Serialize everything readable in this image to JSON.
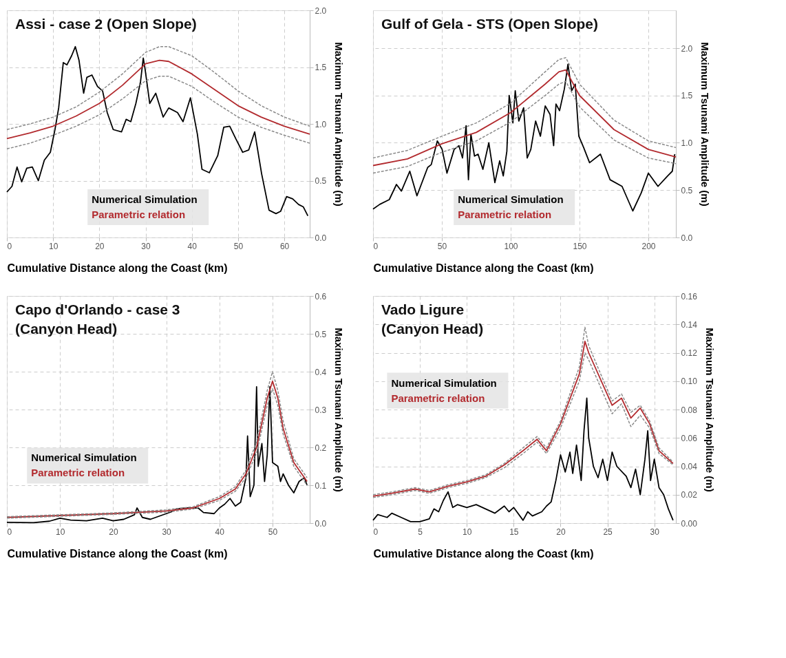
{
  "chart_data": [
    {
      "type": "line",
      "title": "Assi - case 2 (Open Slope)",
      "xlabel": "Cumulative Distance along the Coast (km)",
      "ylabel": "Maximum Tsunami Amplitude (m)",
      "xlim": [
        0,
        65.5
      ],
      "xticks": [
        0,
        10,
        20,
        30,
        40,
        50,
        60
      ],
      "ylim": [
        0,
        2
      ],
      "yticks": [
        {
          "value": 0,
          "label": "0.0"
        },
        0.5,
        {
          "value": 1,
          "label": "1.0"
        },
        1.5,
        {
          "value": 2,
          "label": "2.0"
        }
      ],
      "grid": true,
      "legend": "bottom",
      "line_style": "solid",
      "marker": "none",
      "series": [
        {
          "name": "Numerical Simulation",
          "color": "#000000",
          "x": [
            0,
            1.1,
            2.2,
            3.2,
            4.3,
            5.5,
            6.8,
            8.1,
            9.4,
            10.4,
            11.2,
            12.2,
            13,
            14,
            14.8,
            15.6,
            16.6,
            17.3,
            18.4,
            19.6,
            20.7,
            21.7,
            23,
            24.8,
            25.8,
            26.8,
            27.9,
            28.9,
            29.5,
            29.9,
            30.9,
            32.2,
            33.8,
            35,
            36.9,
            38.1,
            39.7,
            41.2,
            42.2,
            43.8,
            45.6,
            46.9,
            48.2,
            49.5,
            51,
            52.3,
            53.6,
            55.1,
            56.7,
            58.2,
            59.2,
            60.5,
            61.8,
            63.1,
            64.1,
            65.1
          ],
          "values": [
            0.4,
            0.45,
            0.62,
            0.49,
            0.61,
            0.62,
            0.5,
            0.68,
            0.75,
            0.95,
            1.14,
            1.54,
            1.52,
            1.6,
            1.68,
            1.56,
            1.27,
            1.41,
            1.43,
            1.33,
            1.29,
            1.1,
            0.95,
            0.93,
            1.04,
            1.02,
            1.18,
            1.37,
            1.58,
            1.48,
            1.18,
            1.27,
            1.06,
            1.14,
            1.1,
            1.02,
            1.23,
            0.91,
            0.6,
            0.57,
            0.72,
            0.97,
            0.98,
            0.87,
            0.75,
            0.77,
            0.93,
            0.56,
            0.24,
            0.21,
            0.23,
            0.36,
            0.34,
            0.29,
            0.27,
            0.19
          ]
        },
        {
          "name": "Parametric relation",
          "color": "#b22a2e",
          "x": [
            0,
            5,
            10,
            15,
            20,
            25,
            30,
            33,
            35,
            40,
            45,
            50,
            55,
            60,
            65.5
          ],
          "values": [
            0.87,
            0.92,
            0.98,
            1.07,
            1.18,
            1.34,
            1.53,
            1.56,
            1.55,
            1.44,
            1.3,
            1.16,
            1.06,
            0.98,
            0.91
          ]
        },
        {
          "color": "#8a8a8a",
          "line_style": "dashed",
          "x": [
            0,
            5,
            10,
            15,
            20,
            25,
            30,
            33,
            35,
            40,
            45,
            50,
            55,
            60,
            65.5
          ],
          "values": [
            0.95,
            1.0,
            1.06,
            1.15,
            1.28,
            1.44,
            1.63,
            1.68,
            1.68,
            1.6,
            1.45,
            1.29,
            1.16,
            1.06,
            0.98
          ]
        },
        {
          "color": "#8a8a8a",
          "line_style": "dashed",
          "x": [
            0,
            5,
            10,
            15,
            20,
            25,
            30,
            33,
            35,
            40,
            45,
            50,
            55,
            60,
            65.5
          ],
          "values": [
            0.78,
            0.83,
            0.9,
            0.98,
            1.08,
            1.22,
            1.38,
            1.42,
            1.42,
            1.33,
            1.19,
            1.06,
            0.97,
            0.9,
            0.83
          ]
        }
      ]
    },
    {
      "type": "line",
      "title": "Gulf of Gela - STS (Open Slope)",
      "xlabel": "Cumulative Distance along the Coast (km)",
      "ylabel": "Maximum Tsunami Amplitude (m)",
      "xlim": [
        0,
        220
      ],
      "xticks": [
        0,
        50,
        100,
        150,
        200
      ],
      "ylim": [
        0,
        2.4
      ],
      "yticks": [
        {
          "value": 0,
          "label": "0.0"
        },
        0.5,
        {
          "value": 1,
          "label": "1.0"
        },
        1.5,
        {
          "value": 2,
          "label": "2.0"
        }
      ],
      "grid": true,
      "legend": "bottom",
      "line_style": "solid",
      "marker": "none",
      "series": [
        {
          "name": "Numerical Simulation",
          "color": "#000000",
          "x": [
            0,
            4.9,
            11.8,
            17,
            20.6,
            26.7,
            31.9,
            39.7,
            42.3,
            46.7,
            50.2,
            53.7,
            58.9,
            62.4,
            65,
            67.6,
            69.3,
            71.1,
            73.7,
            76.3,
            79.8,
            84.1,
            88.5,
            92,
            94.6,
            97.2,
            98.9,
            101.6,
            103.3,
            105.9,
            109.4,
            112,
            114.6,
            118.1,
            121.6,
            125.1,
            128.6,
            131.2,
            132.9,
            135.5,
            139,
            141.6,
            144.3,
            146.9,
            149.5,
            153,
            157.3,
            165.2,
            172.2,
            180.9,
            188.7,
            194.8,
            200,
            207,
            214,
            217.4,
            219.2
          ],
          "values": [
            0.3,
            0.35,
            0.4,
            0.56,
            0.49,
            0.7,
            0.44,
            0.74,
            0.77,
            1.02,
            0.93,
            0.68,
            0.93,
            0.97,
            0.84,
            1.18,
            0.61,
            1.09,
            0.86,
            0.88,
            0.72,
            1.0,
            0.58,
            0.81,
            0.65,
            0.91,
            1.5,
            1.21,
            1.55,
            1.23,
            1.37,
            0.84,
            0.93,
            1.23,
            1.07,
            1.39,
            1.3,
            0.97,
            1.41,
            1.34,
            1.57,
            1.83,
            1.55,
            1.62,
            1.07,
            0.95,
            0.79,
            0.88,
            0.61,
            0.54,
            0.28,
            0.47,
            0.68,
            0.54,
            0.65,
            0.7,
            0.88
          ]
        },
        {
          "name": "Parametric relation",
          "color": "#b22a2e",
          "x": [
            0,
            25,
            50,
            75,
            100,
            125,
            135,
            140,
            150,
            175,
            200,
            220
          ],
          "values": [
            0.76,
            0.83,
            0.99,
            1.11,
            1.32,
            1.62,
            1.75,
            1.77,
            1.5,
            1.14,
            0.93,
            0.85
          ]
        },
        {
          "color": "#8a8a8a",
          "line_style": "dashed",
          "x": [
            0,
            25,
            50,
            75,
            100,
            125,
            135,
            140,
            150,
            175,
            200,
            220
          ],
          "values": [
            0.84,
            0.92,
            1.07,
            1.21,
            1.42,
            1.75,
            1.88,
            1.9,
            1.62,
            1.24,
            1.02,
            0.95
          ]
        },
        {
          "color": "#8a8a8a",
          "line_style": "dashed",
          "x": [
            0,
            25,
            50,
            75,
            100,
            125,
            135,
            140,
            150,
            175,
            200,
            220
          ],
          "values": [
            0.68,
            0.75,
            0.9,
            1.02,
            1.22,
            1.5,
            1.62,
            1.65,
            1.38,
            1.03,
            0.84,
            0.78
          ]
        }
      ]
    },
    {
      "type": "line",
      "title": "Capo d'Orlando - case 3\n(Canyon Head)",
      "xlabel": "Cumulative Distance along the Coast (km)",
      "ylabel": "Maximum Tsunami Amplitude (m)",
      "xlim": [
        0,
        57
      ],
      "xticks": [
        0,
        10,
        20,
        30,
        40,
        50
      ],
      "ylim": [
        0,
        0.6
      ],
      "yticks": [
        {
          "value": 0,
          "label": "0.0"
        },
        0.1,
        0.2,
        0.3,
        0.4,
        0.5,
        0.6
      ],
      "grid": true,
      "legend": "bottom left",
      "line_style": "solid",
      "marker": "none",
      "series": [
        {
          "name": "Numerical Simulation",
          "color": "#000000",
          "x": [
            0,
            5,
            8,
            10,
            12,
            15,
            18,
            20,
            22,
            24,
            24.5,
            25.5,
            27,
            29,
            31,
            32,
            34,
            36,
            37,
            39,
            40,
            41,
            42,
            43,
            44,
            45,
            45.3,
            45.8,
            46.5,
            47,
            47.3,
            48,
            48.5,
            49,
            49.5,
            50,
            51,
            51.5,
            52,
            53,
            54,
            55,
            56,
            56.5
          ],
          "values": [
            0.002,
            0.001,
            0.005,
            0.013,
            0.008,
            0.006,
            0.013,
            0.006,
            0.01,
            0.022,
            0.04,
            0.015,
            0.01,
            0.02,
            0.03,
            0.038,
            0.04,
            0.04,
            0.028,
            0.025,
            0.04,
            0.05,
            0.065,
            0.045,
            0.055,
            0.12,
            0.23,
            0.07,
            0.1,
            0.36,
            0.15,
            0.21,
            0.11,
            0.18,
            0.36,
            0.16,
            0.15,
            0.11,
            0.13,
            0.1,
            0.08,
            0.11,
            0.12,
            0.1
          ]
        },
        {
          "name": "Parametric relation",
          "color": "#b22a2e",
          "x": [
            0,
            10,
            20,
            30,
            35,
            40,
            43,
            45,
            47,
            49,
            50,
            51,
            52,
            54,
            56,
            56.5
          ],
          "values": [
            0.015,
            0.02,
            0.025,
            0.032,
            0.04,
            0.065,
            0.09,
            0.13,
            0.2,
            0.33,
            0.375,
            0.33,
            0.25,
            0.16,
            0.12,
            0.11
          ]
        },
        {
          "color": "#8a8a8a",
          "line_style": "dashed",
          "x": [
            0,
            10,
            20,
            30,
            35,
            40,
            43,
            45,
            47,
            49,
            50,
            51,
            52,
            54,
            56,
            56.5
          ],
          "values": [
            0.017,
            0.022,
            0.027,
            0.035,
            0.043,
            0.07,
            0.096,
            0.14,
            0.215,
            0.35,
            0.4,
            0.35,
            0.27,
            0.17,
            0.13,
            0.12
          ]
        },
        {
          "color": "#8a8a8a",
          "line_style": "dashed",
          "x": [
            0,
            10,
            20,
            30,
            35,
            40,
            43,
            45,
            47,
            49,
            50,
            51,
            52,
            54,
            56,
            56.5
          ],
          "values": [
            0.013,
            0.018,
            0.023,
            0.029,
            0.037,
            0.06,
            0.084,
            0.12,
            0.185,
            0.31,
            0.355,
            0.31,
            0.235,
            0.15,
            0.11,
            0.1
          ]
        }
      ]
    },
    {
      "type": "line",
      "title": "Vado Ligure\n(Canyon Head)",
      "xlabel": "Cumulative Distance along the Coast (km)",
      "ylabel": "Maximum Tsunami Amplitude (m)",
      "xlim": [
        0,
        32.3
      ],
      "xticks": [
        0,
        5,
        10,
        15,
        20,
        25,
        30
      ],
      "ylim": [
        0,
        0.16
      ],
      "yticks": [
        {
          "value": 0,
          "label": "0.00"
        },
        0.02,
        0.04,
        0.06,
        0.08,
        {
          "value": 0.1,
          "label": "0.10"
        },
        0.12,
        0.14,
        0.16
      ],
      "grid": true,
      "legend": "top left",
      "line_style": "solid",
      "marker": "none",
      "series": [
        {
          "name": "Numerical Simulation",
          "color": "#000000",
          "x": [
            0,
            0.5,
            1.5,
            2,
            3,
            4,
            5,
            6,
            6.5,
            7,
            7.5,
            8,
            8.5,
            9,
            10,
            11,
            12,
            13,
            14,
            14.5,
            15,
            16,
            16.5,
            17,
            18,
            18.5,
            19,
            19.5,
            20,
            20.5,
            21,
            21.3,
            21.7,
            22.2,
            22.5,
            22.8,
            23,
            23.5,
            24,
            24.5,
            25,
            25.5,
            26,
            27,
            27.5,
            28,
            28.5,
            29,
            29.3,
            29.6,
            30,
            30.5,
            31,
            31.5,
            32
          ],
          "values": [
            0.002,
            0.006,
            0.004,
            0.007,
            0.004,
            0.001,
            0.001,
            0.003,
            0.01,
            0.008,
            0.016,
            0.022,
            0.011,
            0.013,
            0.011,
            0.013,
            0.01,
            0.007,
            0.012,
            0.008,
            0.011,
            0.002,
            0.008,
            0.005,
            0.008,
            0.012,
            0.015,
            0.03,
            0.048,
            0.036,
            0.05,
            0.035,
            0.055,
            0.03,
            0.065,
            0.088,
            0.06,
            0.04,
            0.032,
            0.045,
            0.03,
            0.05,
            0.04,
            0.033,
            0.025,
            0.038,
            0.02,
            0.045,
            0.065,
            0.03,
            0.045,
            0.025,
            0.02,
            0.01,
            0.002
          ]
        },
        {
          "name": "Parametric relation",
          "color": "#b22a2e",
          "x": [
            0,
            2,
            4.5,
            6,
            8,
            10,
            12,
            14,
            16,
            17.5,
            18.5,
            20,
            22,
            22.6,
            23,
            25.5,
            26.5,
            27.5,
            28.5,
            29.5,
            30.5,
            32
          ],
          "values": [
            0.019,
            0.021,
            0.024,
            0.022,
            0.026,
            0.029,
            0.033,
            0.041,
            0.051,
            0.059,
            0.051,
            0.07,
            0.105,
            0.128,
            0.12,
            0.083,
            0.088,
            0.074,
            0.081,
            0.07,
            0.051,
            0.042
          ]
        },
        {
          "color": "#8a8a8a",
          "line_style": "dashed",
          "x": [
            0,
            2,
            4.5,
            6,
            8,
            10,
            12,
            14,
            16,
            17.5,
            18.5,
            20,
            22,
            22.6,
            23,
            25.5,
            26.5,
            27.5,
            28.5,
            29.5,
            30.5,
            32
          ],
          "values": [
            0.02,
            0.022,
            0.025,
            0.023,
            0.027,
            0.03,
            0.034,
            0.042,
            0.053,
            0.061,
            0.053,
            0.072,
            0.11,
            0.138,
            0.125,
            0.086,
            0.091,
            0.078,
            0.083,
            0.072,
            0.053,
            0.043
          ]
        },
        {
          "color": "#8a8a8a",
          "line_style": "dashed",
          "x": [
            0,
            2,
            4.5,
            6,
            8,
            10,
            12,
            14,
            16,
            17.5,
            18.5,
            20,
            22,
            22.6,
            23,
            25.5,
            26.5,
            27.5,
            28.5,
            29.5,
            30.5,
            32
          ],
          "values": [
            0.018,
            0.02,
            0.023,
            0.021,
            0.025,
            0.028,
            0.032,
            0.039,
            0.049,
            0.057,
            0.049,
            0.067,
            0.1,
            0.12,
            0.115,
            0.077,
            0.084,
            0.068,
            0.076,
            0.067,
            0.049,
            0.041
          ]
        }
      ]
    }
  ]
}
